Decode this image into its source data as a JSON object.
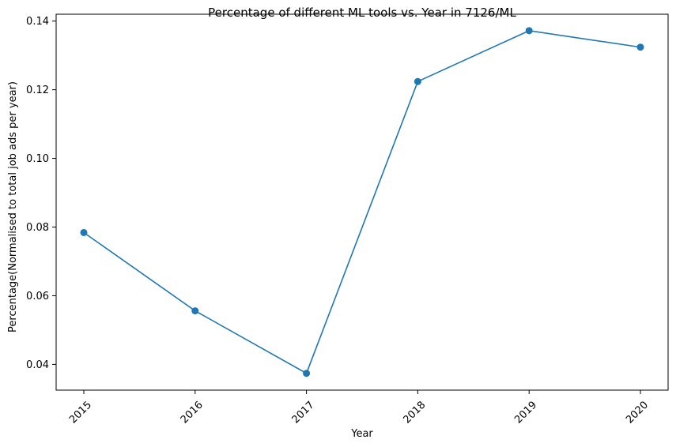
{
  "chart_data": {
    "type": "line",
    "title": "Percentage of different ML tools vs. Year in 7126/ML",
    "xlabel": "Year",
    "ylabel": "Percentage(Normalised to total job ads per year)",
    "x": [
      "2015",
      "2016",
      "2017",
      "2018",
      "2019",
      "2020"
    ],
    "series": [
      {
        "values": [
          0.0784,
          0.0556,
          0.0374,
          0.1224,
          0.1372,
          0.1324
        ]
      }
    ],
    "yticks": [
      "0.04",
      "0.06",
      "0.08",
      "0.10",
      "0.12",
      "0.14"
    ],
    "ylim": [
      0.0325,
      0.142
    ],
    "grid": false,
    "legend": "none",
    "x_tick_rotation": 45,
    "colors": {
      "line": "#1f77b4",
      "axis": "#000000"
    }
  }
}
